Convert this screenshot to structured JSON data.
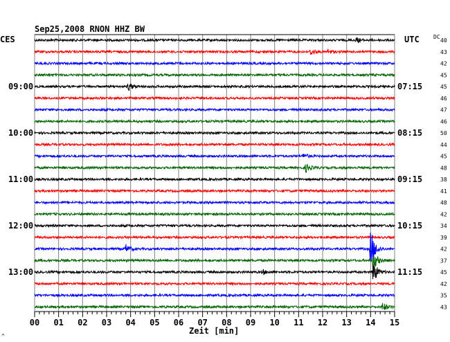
{
  "chart_data": {
    "type": "line",
    "title": "Sep25,2008  RNON HHZ BW",
    "left_header": "CES",
    "right_header": "UTC",
    "dc_header": "DC",
    "xlabel": "Zeit [min]",
    "xlim": [
      0,
      15
    ],
    "x_ticks": [
      "00",
      "01",
      "02",
      "03",
      "04",
      "05",
      "06",
      "07",
      "08",
      "09",
      "10",
      "11",
      "12",
      "13",
      "14",
      "15"
    ],
    "trace_minutes": 15,
    "trace_colors": [
      "#000000",
      "#ff0000",
      "#0000ff",
      "#006400"
    ],
    "left_time_labels": [
      {
        "trace": 4,
        "label": "09:00"
      },
      {
        "trace": 8,
        "label": "10:00"
      },
      {
        "trace": 12,
        "label": "11:00"
      },
      {
        "trace": 16,
        "label": "12:00"
      },
      {
        "trace": 20,
        "label": "13:00"
      }
    ],
    "right_time_labels": [
      {
        "trace": 4,
        "label": "07:15"
      },
      {
        "trace": 8,
        "label": "08:15"
      },
      {
        "trace": 12,
        "label": "09:15"
      },
      {
        "trace": 16,
        "label": "10:15"
      },
      {
        "trace": 20,
        "label": "11:15"
      }
    ],
    "dc_values": [
      40,
      43,
      42,
      45,
      45,
      46,
      47,
      46,
      50,
      44,
      45,
      48,
      38,
      41,
      48,
      42,
      34,
      39,
      42,
      37,
      45,
      42,
      35,
      43
    ],
    "events": [
      {
        "trace": 0,
        "minute": 13.4,
        "amplitude": 4
      },
      {
        "trace": 1,
        "minute": 11.5,
        "amplitude": 5
      },
      {
        "trace": 1,
        "minute": 12.2,
        "amplitude": 3
      },
      {
        "trace": 4,
        "minute": 3.9,
        "amplitude": 6
      },
      {
        "trace": 10,
        "minute": 11.2,
        "amplitude": 4
      },
      {
        "trace": 11,
        "minute": 11.3,
        "amplitude": 6
      },
      {
        "trace": 18,
        "minute": 3.8,
        "amplitude": 6
      },
      {
        "trace": 18,
        "minute": 14.0,
        "amplitude": 30
      },
      {
        "trace": 19,
        "minute": 14.1,
        "amplitude": 14
      },
      {
        "trace": 20,
        "minute": 14.1,
        "amplitude": 18
      },
      {
        "trace": 20,
        "minute": 9.5,
        "amplitude": 3
      },
      {
        "trace": 23,
        "minute": 14.5,
        "amplitude": 6
      }
    ],
    "footnote": "^"
  }
}
